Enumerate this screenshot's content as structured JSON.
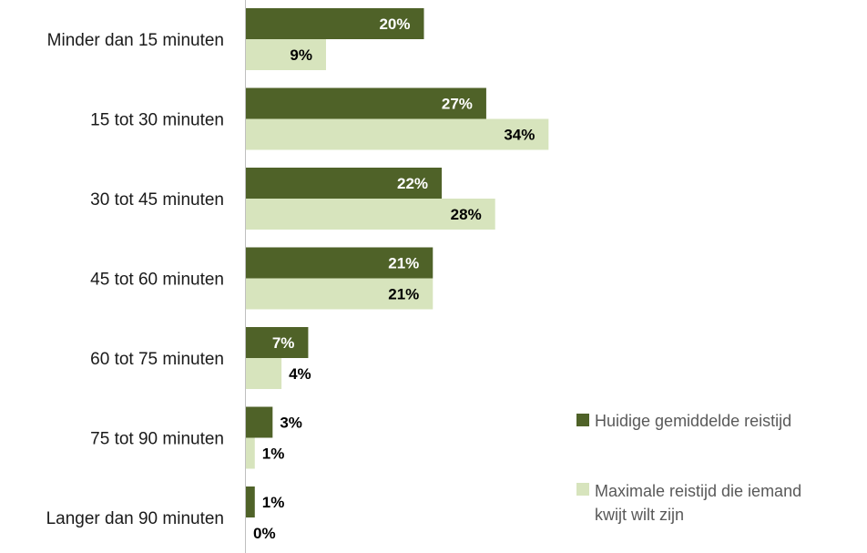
{
  "chart_data": {
    "type": "bar",
    "orientation": "horizontal",
    "categories": [
      "Minder dan 15 minuten",
      "15 tot 30 minuten",
      "30 tot 45 minuten",
      "45 tot 60 minuten",
      "60 tot 75 minuten",
      "75 tot 90 minuten",
      "Langer dan 90 minuten"
    ],
    "series": [
      {
        "name": "Huidige gemiddelde reistijd",
        "color": "#4f6228",
        "values": [
          20,
          27,
          22,
          21,
          7,
          3,
          1
        ],
        "labels": [
          "20%",
          "27%",
          "22%",
          "21%",
          "7%",
          "3%",
          "1%"
        ]
      },
      {
        "name": "Maximale reistijd die iemand kwijt wilt zijn",
        "color": "#d7e4bd",
        "values": [
          9,
          34,
          28,
          21,
          4,
          1,
          0
        ],
        "labels": [
          "9%",
          "34%",
          "28%",
          "21%",
          "4%",
          "1%",
          "0%"
        ]
      }
    ],
    "xlim": [
      0,
      34
    ],
    "unit": "%",
    "grid": false,
    "legend_position": "right"
  }
}
